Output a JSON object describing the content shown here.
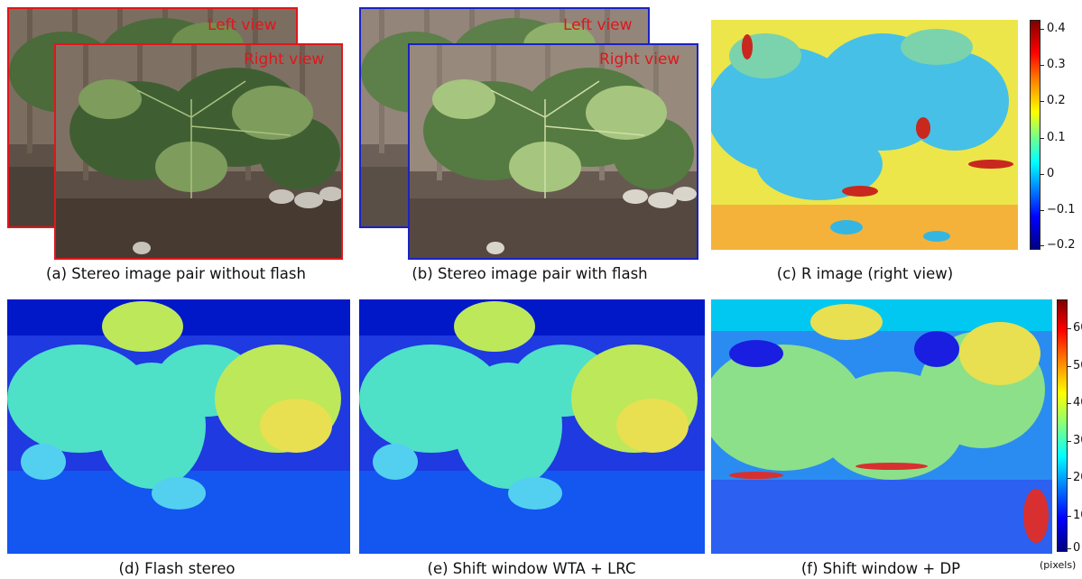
{
  "panels": {
    "a": {
      "caption": "(a) Stereo image pair without flash",
      "back_label": "Left view",
      "front_label": "Right view",
      "border_color": "#e0161b"
    },
    "b": {
      "caption": "(b) Stereo image pair with flash",
      "back_label": "Left view",
      "front_label": "Right view",
      "border_color": "#1a22c4"
    },
    "c": {
      "caption": "(c) R image (right view)"
    },
    "d": {
      "caption": "(d) Flash stereo"
    },
    "e": {
      "caption": "(e) Shift window WTA + LRC"
    },
    "f": {
      "caption": "(f) Shift window + DP"
    }
  },
  "colorbars": {
    "r_image": {
      "colormap": "jet",
      "range": [
        -0.22,
        0.43
      ],
      "ticks": [
        "0.4",
        "0.3",
        "0.2",
        "0.1",
        "0",
        "−0.1",
        "−0.2"
      ],
      "tick_values": [
        0.4,
        0.3,
        0.2,
        0.1,
        0,
        -0.1,
        -0.2
      ]
    },
    "disparity": {
      "colormap": "jet",
      "range": [
        -1,
        66
      ],
      "ticks": [
        "60",
        "50",
        "40",
        "30",
        "20",
        "10",
        "0"
      ],
      "tick_values": [
        60,
        50,
        40,
        30,
        20,
        10,
        0
      ],
      "unit": "(pixels)"
    }
  },
  "colors": {
    "red_frame": "#e0161b",
    "blue_frame": "#1a22c4"
  }
}
